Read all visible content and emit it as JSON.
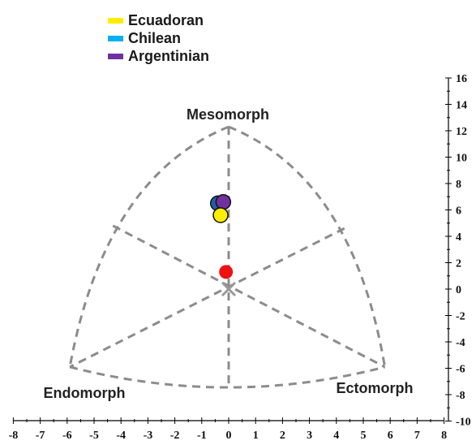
{
  "chart_data": {
    "type": "scatter",
    "subtype": "somatochart",
    "title": "",
    "legend": {
      "placement": "top-left",
      "entries": [
        {
          "name": "Ecuadoran",
          "color": "#ffee00"
        },
        {
          "name": "Chilean",
          "color": "#00b0f0"
        },
        {
          "name": "Argentinian",
          "color": "#7030a0"
        }
      ]
    },
    "regions": {
      "top": "Mesomorph",
      "left": "Endomorph",
      "right": "Ectomorph"
    },
    "x_axis": {
      "range": [
        -8,
        8
      ],
      "ticks": [
        "-8",
        "-7",
        "-6",
        "-5",
        "-4",
        "-3",
        "-2",
        "-1",
        "0",
        "1",
        "2",
        "3",
        "4",
        "5",
        "6",
        "7",
        "8"
      ]
    },
    "y_axis": {
      "range": [
        -10,
        16
      ],
      "position": "right",
      "ticks": [
        "16",
        "14",
        "12",
        "10",
        "8",
        "6",
        "4",
        "2",
        "0",
        "-2",
        "-4",
        "-6",
        "-8",
        "-10"
      ]
    },
    "grid": false,
    "points": [
      {
        "name": "Chilean",
        "x": -0.4,
        "y": 6.5,
        "fill": "#1f5fa8"
      },
      {
        "name": "Argentinian",
        "x": -0.2,
        "y": 6.6,
        "fill": "#7030a0"
      },
      {
        "name": "Ecuadoran",
        "x": -0.3,
        "y": 5.6,
        "fill": "#ffee00"
      },
      {
        "name": "",
        "x": -0.1,
        "y": 1.3,
        "fill": "#ee1111"
      }
    ],
    "origin_marker": {
      "x": 0,
      "y": 0,
      "symbol": "x"
    }
  }
}
